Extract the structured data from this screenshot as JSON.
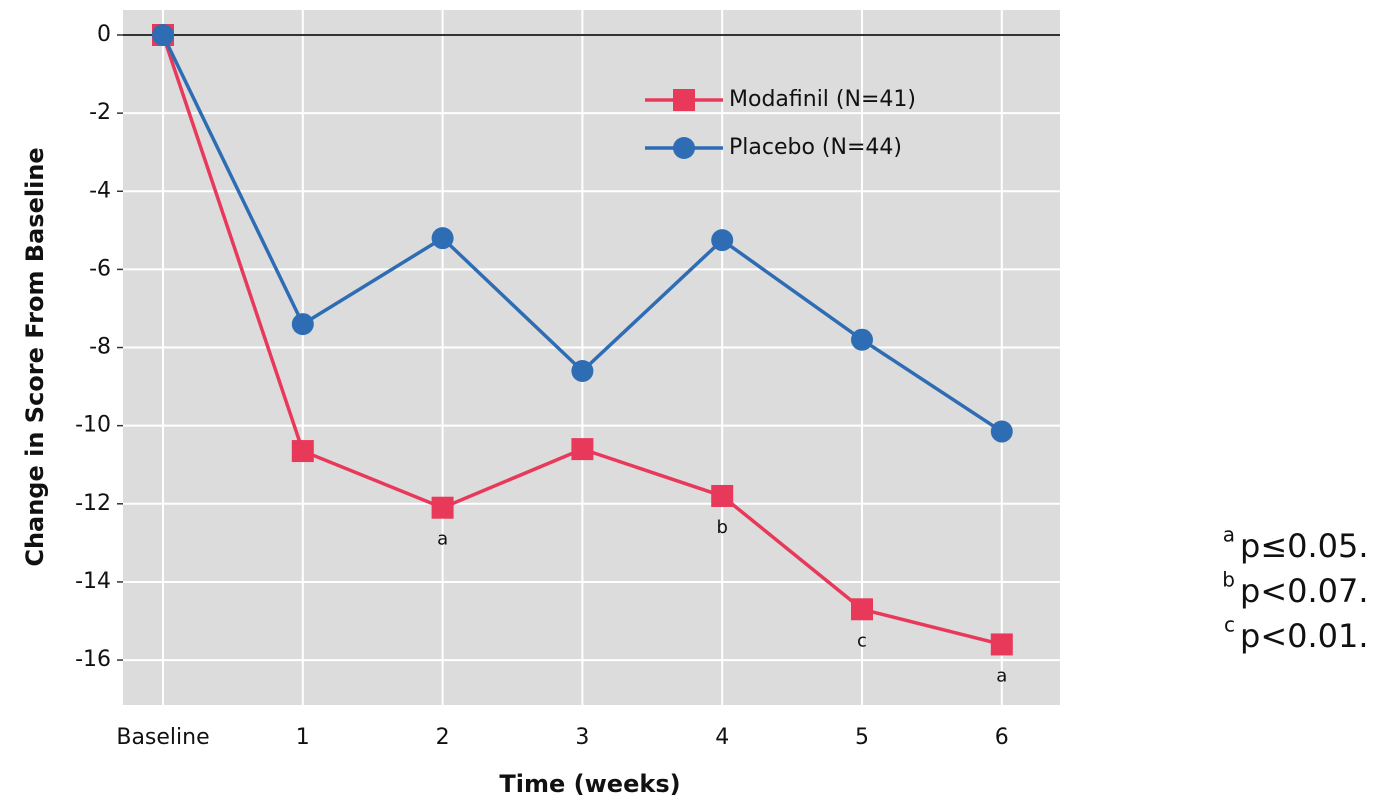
{
  "chart_data": {
    "type": "line",
    "x_label": "Time (weeks)",
    "y_label": "Change in Score From Baseline",
    "categories": [
      "Baseline",
      "1",
      "2",
      "3",
      "4",
      "5",
      "6"
    ],
    "series": [
      {
        "name": "Modafinil (N=41)",
        "color": "#e8395a",
        "marker": "square",
        "values": [
          0,
          -10.65,
          -12.1,
          -10.6,
          -11.8,
          -14.7,
          -15.6
        ],
        "significance": [
          null,
          null,
          "a",
          null,
          "b",
          "c",
          "a"
        ]
      },
      {
        "name": "Placebo (N=44)",
        "color": "#2e6db4",
        "marker": "circle",
        "values": [
          0,
          -7.4,
          -5.2,
          -8.6,
          -5.25,
          -7.8,
          -10.15
        ]
      }
    ],
    "ylim": [
      -17.15,
      0.64
    ],
    "yticks": [
      0,
      -2,
      -4,
      -6,
      -8,
      -10,
      -12,
      -14,
      -16
    ],
    "grid": true,
    "legend": "upper right",
    "footnotes": [
      {
        "symbol": "a",
        "text": "p≤0.05."
      },
      {
        "symbol": "b",
        "text": "p<0.07."
      },
      {
        "symbol": "c",
        "text": "p<0.01."
      }
    ]
  }
}
